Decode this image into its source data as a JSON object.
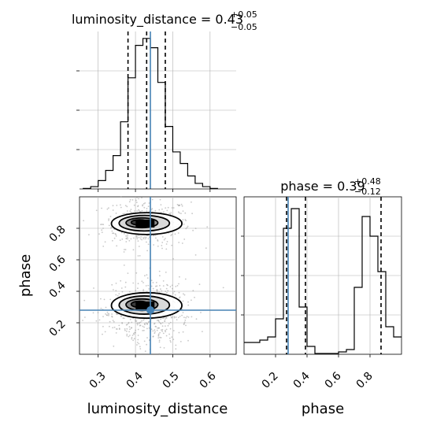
{
  "chart_data": [
    {
      "type": "histogram",
      "panel": "top-left",
      "title_label": "luminosity_distance = 0.43",
      "title_sup": "+0.05",
      "title_sub": "−0.05",
      "xlabel": "",
      "xlim": [
        0.25,
        0.67
      ],
      "x": [
        0.27,
        0.29,
        0.31,
        0.33,
        0.35,
        0.37,
        0.39,
        0.41,
        0.43,
        0.45,
        0.47,
        0.49,
        0.51,
        0.53,
        0.55,
        0.57,
        0.59,
        0.61
      ],
      "values": [
        0.1,
        0.5,
        1.8,
        4.0,
        7.2,
        14.5,
        24.0,
        31.0,
        32.5,
        30.5,
        23.0,
        13.5,
        8.0,
        5.5,
        2.8,
        1.2,
        0.5,
        0.1
      ],
      "ylim": [
        0,
        34
      ],
      "quantiles": [
        0.38,
        0.43,
        0.48
      ],
      "truth": 0.44,
      "grid": true
    },
    {
      "type": "histogram",
      "panel": "bottom-right",
      "title_label": "phase = 0.39",
      "title_sup": "+0.48",
      "title_sub": "−0.12",
      "xlabel": "phase",
      "xlim": [
        0.0,
        1.0
      ],
      "x_ticks": [
        "0.2",
        "0.4",
        "0.6",
        "0.8"
      ],
      "x": [
        0.025,
        0.075,
        0.125,
        0.175,
        0.225,
        0.275,
        0.325,
        0.375,
        0.425,
        0.475,
        0.525,
        0.575,
        0.625,
        0.675,
        0.725,
        0.775,
        0.825,
        0.875,
        0.925,
        0.975
      ],
      "values": [
        1.5,
        1.5,
        1.8,
        2.2,
        4.5,
        16.0,
        18.5,
        6.0,
        1.0,
        0.1,
        0.1,
        0.1,
        0.3,
        0.6,
        8.5,
        17.5,
        15.0,
        10.5,
        3.5,
        2.2
      ],
      "ylim": [
        0,
        20
      ],
      "quantiles": [
        0.27,
        0.39,
        0.87
      ],
      "truth": 0.28,
      "grid": true
    },
    {
      "type": "contour",
      "panel": "bottom-left",
      "xlabel": "luminosity_distance",
      "ylabel": "phase",
      "xlim": [
        0.25,
        0.67
      ],
      "ylim": [
        0.0,
        1.0
      ],
      "x_ticks": [
        "0.3",
        "0.4",
        "0.5",
        "0.6"
      ],
      "y_ticks": [
        "0.2",
        "0.4",
        "0.6",
        "0.8"
      ],
      "modes": [
        {
          "center": [
            0.43,
            0.83
          ],
          "spread": [
            0.045,
            0.06
          ]
        },
        {
          "center": [
            0.43,
            0.31
          ],
          "spread": [
            0.045,
            0.07
          ]
        }
      ],
      "contour_levels": 3,
      "truth": [
        0.44,
        0.28
      ],
      "grid": true
    }
  ]
}
